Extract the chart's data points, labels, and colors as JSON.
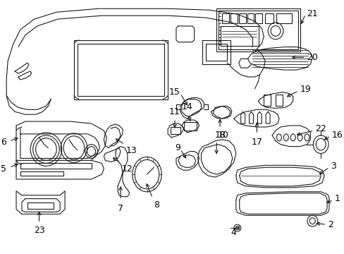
{
  "bg_color": "#ffffff",
  "line_color": "#1a1a1a",
  "fig_width": 4.89,
  "fig_height": 3.6,
  "dpi": 100,
  "label_fontsize": 9,
  "label_color": "#000000"
}
